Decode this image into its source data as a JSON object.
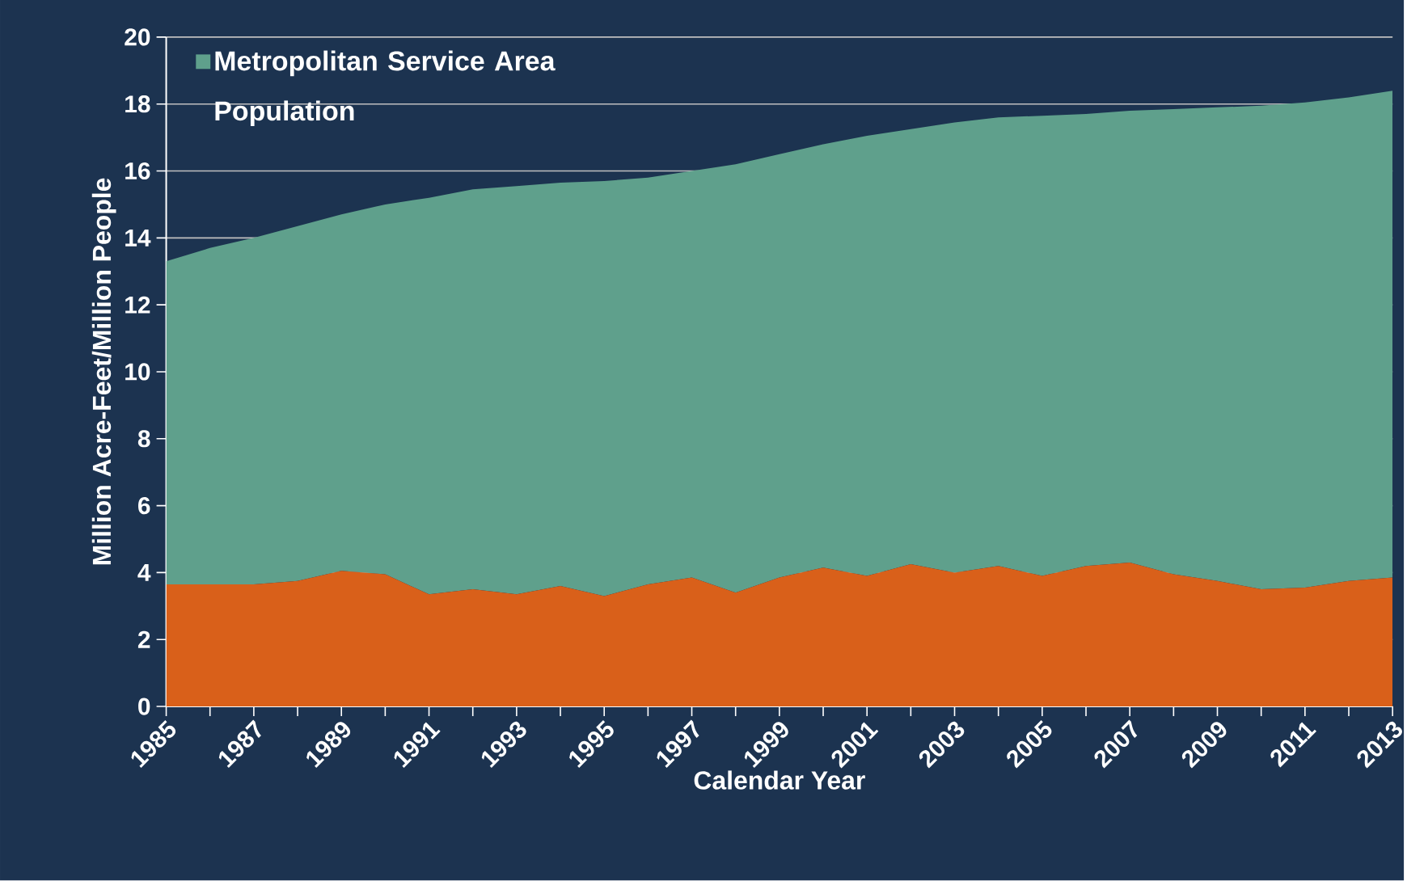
{
  "chart_data": {
    "type": "area",
    "xlabel": "Calendar Year",
    "ylabel": "Million Acre-Feet/Million People",
    "x": [
      1985,
      1986,
      1987,
      1988,
      1989,
      1990,
      1991,
      1992,
      1993,
      1994,
      1995,
      1996,
      1997,
      1998,
      1999,
      2000,
      2001,
      2002,
      2003,
      2004,
      2005,
      2006,
      2007,
      2008,
      2009,
      2010,
      2011,
      2012,
      2013
    ],
    "series": [
      {
        "name": "Metropolitan Service Area Population",
        "color": "#5fa08c",
        "values": [
          13.3,
          13.7,
          14.0,
          14.35,
          14.7,
          15.0,
          15.2,
          15.45,
          15.55,
          15.65,
          15.7,
          15.8,
          16.0,
          16.2,
          16.5,
          16.8,
          17.05,
          17.25,
          17.45,
          17.6,
          17.65,
          17.7,
          17.8,
          17.85,
          17.9,
          17.95,
          18.05,
          18.2,
          18.4
        ]
      },
      {
        "color": "#d9601a",
        "values": [
          3.65,
          3.65,
          3.65,
          3.75,
          4.05,
          3.95,
          3.35,
          3.5,
          3.35,
          3.6,
          3.3,
          3.65,
          3.85,
          3.4,
          3.85,
          4.15,
          3.9,
          4.25,
          4.0,
          4.2,
          3.9,
          4.2,
          4.3,
          3.95,
          3.75,
          3.5,
          3.55,
          3.75,
          3.85
        ]
      }
    ],
    "xlim": [
      1985,
      2013
    ],
    "xticks": [
      1985,
      {
        "value": 1986,
        "label": null
      },
      1987,
      {
        "value": 1988,
        "label": null
      },
      1989,
      {
        "value": 1990,
        "label": null
      },
      1991,
      {
        "value": 1992,
        "label": null
      },
      1993,
      {
        "value": 1994,
        "label": null
      },
      1995,
      {
        "value": 1996,
        "label": null
      },
      1997,
      {
        "value": 1998,
        "label": null
      },
      1999,
      {
        "value": 2000,
        "label": null
      },
      2001,
      {
        "value": 2002,
        "label": null
      },
      2003,
      {
        "value": 2004,
        "label": null
      },
      2005,
      {
        "value": 2006,
        "label": null
      },
      2007,
      {
        "value": 2008,
        "label": null
      },
      2009,
      {
        "value": 2010,
        "label": null
      },
      2011,
      {
        "value": 2012,
        "label": null
      },
      2013
    ],
    "ylim": [
      0,
      20
    ],
    "yticks": [
      0,
      2,
      4,
      6,
      8,
      10,
      12,
      14,
      16,
      18,
      20
    ],
    "grid": "y",
    "legend": "top left"
  }
}
